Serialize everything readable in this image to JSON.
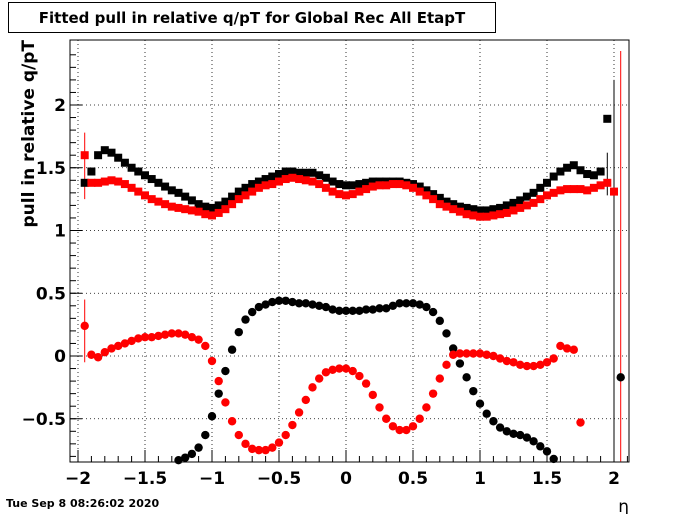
{
  "footer": {
    "timestamp": "Tue Sep  8 08:26:02 2020"
  },
  "chart_data": {
    "type": "scatter",
    "title": "Fitted pull in relative q/pT for Global Rec All EtapT",
    "xlabel": "η",
    "ylabel": "pull in relative q/pT",
    "xlim": [
      -2.05,
      2.1
    ],
    "ylim": [
      -0.84,
      2.43
    ],
    "grid": true,
    "x_ticks": [
      "−2",
      "−1.5",
      "−1",
      "−0.5",
      "0",
      "0.5",
      "1",
      "1.5",
      "2"
    ],
    "y_ticks": [
      "−0.5",
      "0",
      "0.5",
      "1",
      "1.5",
      "2"
    ],
    "colors": {
      "black_series": "#000000",
      "red_series": "#ff0000"
    },
    "x": [
      -1.95,
      -1.9,
      -1.85,
      -1.8,
      -1.75,
      -1.7,
      -1.65,
      -1.6,
      -1.55,
      -1.5,
      -1.45,
      -1.4,
      -1.35,
      -1.3,
      -1.25,
      -1.2,
      -1.15,
      -1.1,
      -1.05,
      -1.0,
      -0.95,
      -0.9,
      -0.85,
      -0.8,
      -0.75,
      -0.7,
      -0.65,
      -0.6,
      -0.55,
      -0.5,
      -0.45,
      -0.4,
      -0.35,
      -0.3,
      -0.25,
      -0.2,
      -0.15,
      -0.1,
      -0.05,
      0.0,
      0.05,
      0.1,
      0.15,
      0.2,
      0.25,
      0.3,
      0.35,
      0.4,
      0.45,
      0.5,
      0.55,
      0.6,
      0.65,
      0.7,
      0.75,
      0.8,
      0.85,
      0.9,
      0.95,
      1.0,
      1.05,
      1.1,
      1.15,
      1.2,
      1.25,
      1.3,
      1.35,
      1.4,
      1.45,
      1.5,
      1.55,
      1.6,
      1.65,
      1.7,
      1.75,
      1.8,
      1.85,
      1.9,
      1.95,
      2.0,
      2.05
    ],
    "series": [
      {
        "marker": "square",
        "color": "#000000",
        "values": [
          1.38,
          1.47,
          1.6,
          1.64,
          1.62,
          1.58,
          1.54,
          1.5,
          1.47,
          1.44,
          1.41,
          1.38,
          1.35,
          1.32,
          1.3,
          1.27,
          1.24,
          1.21,
          1.19,
          1.18,
          1.2,
          1.23,
          1.27,
          1.31,
          1.34,
          1.37,
          1.39,
          1.41,
          1.43,
          1.45,
          1.47,
          1.47,
          1.46,
          1.46,
          1.46,
          1.44,
          1.42,
          1.39,
          1.37,
          1.36,
          1.36,
          1.37,
          1.38,
          1.39,
          1.39,
          1.39,
          1.39,
          1.39,
          1.38,
          1.37,
          1.35,
          1.32,
          1.29,
          1.26,
          1.23,
          1.21,
          1.19,
          1.18,
          1.17,
          1.16,
          1.16,
          1.17,
          1.18,
          1.2,
          1.22,
          1.24,
          1.27,
          1.3,
          1.34,
          1.38,
          1.43,
          1.47,
          1.5,
          1.52,
          1.48,
          1.45,
          1.44,
          1.47,
          1.89,
          null,
          null
        ]
      },
      {
        "marker": "square",
        "color": "#ff0000",
        "values": [
          1.6,
          1.38,
          1.38,
          1.39,
          1.4,
          1.39,
          1.37,
          1.34,
          1.31,
          1.28,
          1.25,
          1.23,
          1.21,
          1.19,
          1.18,
          1.17,
          1.16,
          1.15,
          1.13,
          1.12,
          1.14,
          1.17,
          1.21,
          1.25,
          1.28,
          1.31,
          1.34,
          1.36,
          1.37,
          1.39,
          1.41,
          1.42,
          1.41,
          1.4,
          1.39,
          1.37,
          1.34,
          1.31,
          1.29,
          1.28,
          1.29,
          1.31,
          1.33,
          1.35,
          1.36,
          1.36,
          1.37,
          1.37,
          1.36,
          1.34,
          1.31,
          1.28,
          1.25,
          1.21,
          1.19,
          1.17,
          1.15,
          1.13,
          1.12,
          1.11,
          1.11,
          1.12,
          1.13,
          1.14,
          1.16,
          1.18,
          1.2,
          1.22,
          1.25,
          1.28,
          1.3,
          1.32,
          1.33,
          1.33,
          1.33,
          1.32,
          1.34,
          1.36,
          1.38,
          1.31,
          null
        ]
      },
      {
        "marker": "circle",
        "color": "#000000",
        "values": [
          null,
          null,
          null,
          null,
          null,
          null,
          null,
          null,
          null,
          null,
          null,
          null,
          null,
          null,
          -0.83,
          -0.81,
          -0.78,
          -0.73,
          -0.63,
          -0.48,
          -0.3,
          -0.12,
          0.05,
          0.19,
          0.29,
          0.35,
          0.39,
          0.41,
          0.43,
          0.44,
          0.44,
          0.43,
          0.42,
          0.42,
          0.41,
          0.4,
          0.39,
          0.37,
          0.36,
          0.36,
          0.36,
          0.36,
          0.37,
          0.37,
          0.38,
          0.38,
          0.4,
          0.42,
          0.42,
          0.42,
          0.41,
          0.39,
          0.35,
          0.28,
          0.18,
          0.06,
          -0.06,
          -0.17,
          -0.28,
          -0.38,
          -0.46,
          -0.52,
          -0.57,
          -0.6,
          -0.62,
          -0.63,
          -0.65,
          -0.68,
          -0.72,
          -0.76,
          -0.82,
          null,
          null,
          null,
          null,
          null,
          null,
          null,
          null,
          null,
          -0.17
        ]
      },
      {
        "marker": "circle",
        "color": "#ff0000",
        "values": [
          0.24,
          0.01,
          -0.01,
          0.03,
          0.06,
          0.08,
          0.1,
          0.12,
          0.14,
          0.15,
          0.15,
          0.16,
          0.17,
          0.18,
          0.18,
          0.17,
          0.15,
          0.13,
          0.08,
          -0.04,
          -0.2,
          -0.37,
          -0.52,
          -0.63,
          -0.7,
          -0.74,
          -0.75,
          -0.75,
          -0.73,
          -0.69,
          -0.63,
          -0.55,
          -0.45,
          -0.35,
          -0.25,
          -0.18,
          -0.13,
          -0.11,
          -0.1,
          -0.1,
          -0.12,
          -0.16,
          -0.22,
          -0.31,
          -0.41,
          -0.5,
          -0.56,
          -0.59,
          -0.59,
          -0.56,
          -0.5,
          -0.41,
          -0.3,
          -0.18,
          -0.07,
          0.01,
          0.02,
          0.02,
          0.02,
          0.02,
          0.01,
          0.0,
          -0.02,
          -0.04,
          -0.05,
          -0.07,
          -0.08,
          -0.08,
          -0.07,
          -0.05,
          -0.02,
          0.08,
          0.06,
          0.05,
          -0.53,
          null,
          null,
          null,
          null,
          null,
          null
        ]
      }
    ]
  }
}
